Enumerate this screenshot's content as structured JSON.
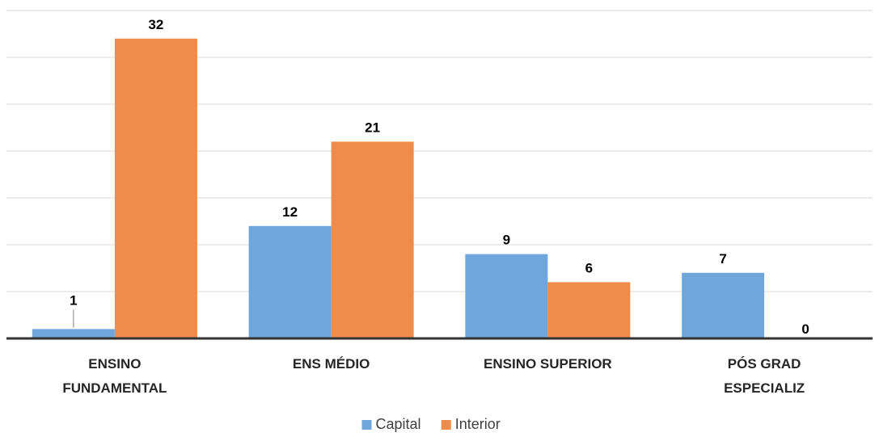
{
  "chart_data": {
    "type": "bar",
    "categories": [
      [
        "ENSINO",
        "FUNDAMENTAL"
      ],
      [
        "ENS MÉDIO"
      ],
      [
        "ENSINO SUPERIOR"
      ],
      [
        "PÓS GRAD",
        "ESPECIALIZ"
      ]
    ],
    "series": [
      {
        "name": "Capital",
        "color": "#6fa6dc",
        "values": [
          1,
          12,
          9,
          7
        ]
      },
      {
        "name": "Interior",
        "color": "#ef8b4b",
        "values": [
          32,
          21,
          6,
          0
        ]
      }
    ],
    "title": "",
    "xlabel": "",
    "ylabel": "",
    "ylim": [
      0,
      35
    ],
    "grid": true,
    "legend": "bottom-center"
  }
}
